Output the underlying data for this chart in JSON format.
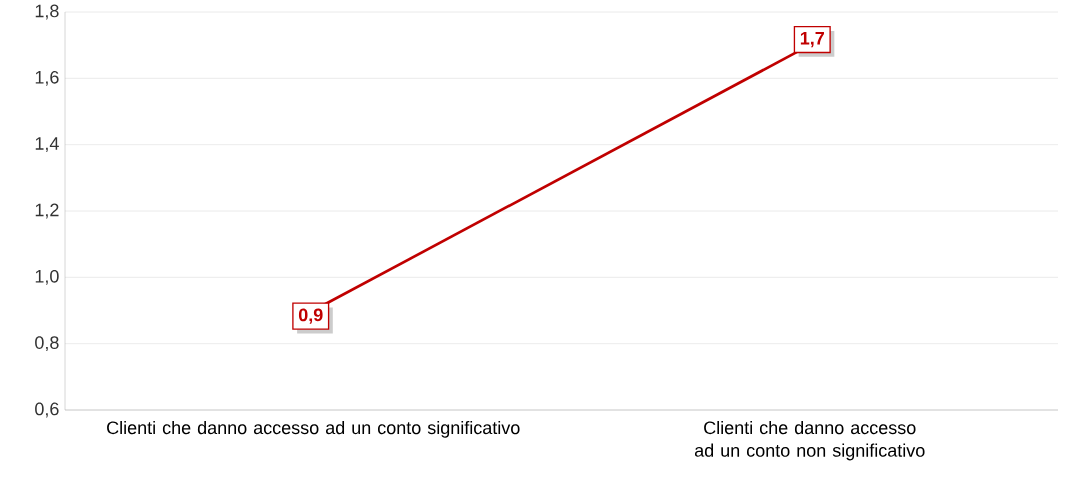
{
  "chart_data": {
    "type": "line",
    "categories": [
      "Clienti che danno accesso ad un conto significativo",
      "Clienti che danno accesso ad un conto non significativo"
    ],
    "series": [
      {
        "color": "#c00000",
        "values": [
          0.9,
          1.7
        ],
        "value_labels": [
          "0,9",
          "1,7"
        ]
      }
    ],
    "ylim": [
      0.6,
      1.8
    ],
    "yticks": [
      {
        "value": 0.6,
        "label": "0,6"
      },
      {
        "value": 0.8,
        "label": "0,8"
      },
      {
        "value": 1.0,
        "label": "1,0"
      },
      {
        "value": 1.2,
        "label": "1,2"
      },
      {
        "value": 1.4,
        "label": "1,4"
      },
      {
        "value": 1.6,
        "label": "1,6"
      },
      {
        "value": 1.8,
        "label": "1,8"
      }
    ],
    "grid": "y",
    "line_style": "solid"
  }
}
